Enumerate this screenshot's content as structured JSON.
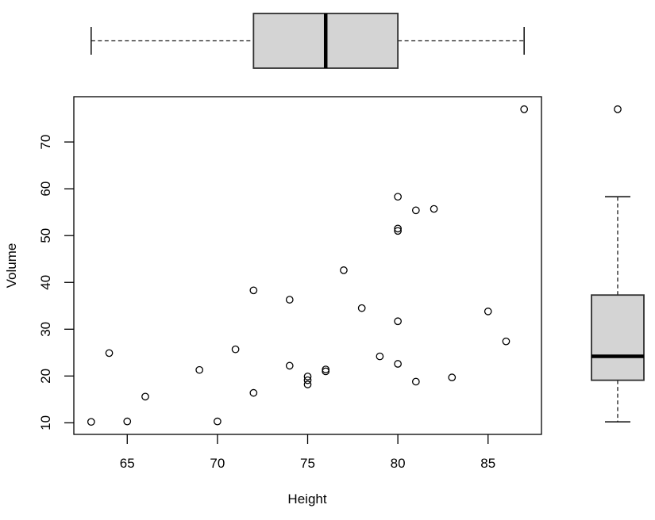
{
  "chart_data": {
    "type": "scatter",
    "title": "",
    "xlabel": "Height",
    "ylabel": "Volume",
    "xlim": [
      62.04,
      87.96
    ],
    "ylim": [
      7.53,
      79.67
    ],
    "x_ticks": [
      65,
      70,
      75,
      80,
      85
    ],
    "y_ticks": [
      10,
      20,
      30,
      40,
      50,
      60,
      70
    ],
    "grid": false,
    "legend": "none",
    "points_xy": [
      [
        70,
        10.3
      ],
      [
        65,
        10.3
      ],
      [
        63,
        10.2
      ],
      [
        72,
        16.4
      ],
      [
        81,
        18.8
      ],
      [
        83,
        19.7
      ],
      [
        66,
        15.6
      ],
      [
        75,
        18.2
      ],
      [
        80,
        22.6
      ],
      [
        75,
        19.9
      ],
      [
        79,
        24.2
      ],
      [
        76,
        21.0
      ],
      [
        76,
        21.4
      ],
      [
        69,
        21.3
      ],
      [
        75,
        19.1
      ],
      [
        74,
        22.2
      ],
      [
        85,
        33.8
      ],
      [
        86,
        27.4
      ],
      [
        71,
        25.7
      ],
      [
        64,
        24.9
      ],
      [
        78,
        34.5
      ],
      [
        80,
        31.7
      ],
      [
        74,
        36.3
      ],
      [
        72,
        38.3
      ],
      [
        77,
        42.6
      ],
      [
        81,
        55.4
      ],
      [
        82,
        55.7
      ],
      [
        80,
        58.3
      ],
      [
        80,
        51.5
      ],
      [
        80,
        51.0
      ],
      [
        87,
        77.0
      ]
    ],
    "marginal_boxplot_top": {
      "axis": "x",
      "whisker_low": 63,
      "q1": 72,
      "median": 76,
      "q3": 80,
      "whisker_high": 87,
      "outliers": []
    },
    "marginal_boxplot_right": {
      "axis": "y",
      "whisker_low": 10.2,
      "q1": 19.1,
      "median": 24.2,
      "q3": 37.3,
      "whisker_high": 58.3,
      "outliers": [
        77.0
      ]
    },
    "colors": {
      "background": "#ffffff",
      "box_fill": "#d4d4d4",
      "box_border": "#2f2f2f",
      "median_line": "#000000",
      "whisker_line": "#1a1a1a",
      "point_stroke": "#000000",
      "axis_line": "#000000",
      "text": "#000000"
    }
  }
}
